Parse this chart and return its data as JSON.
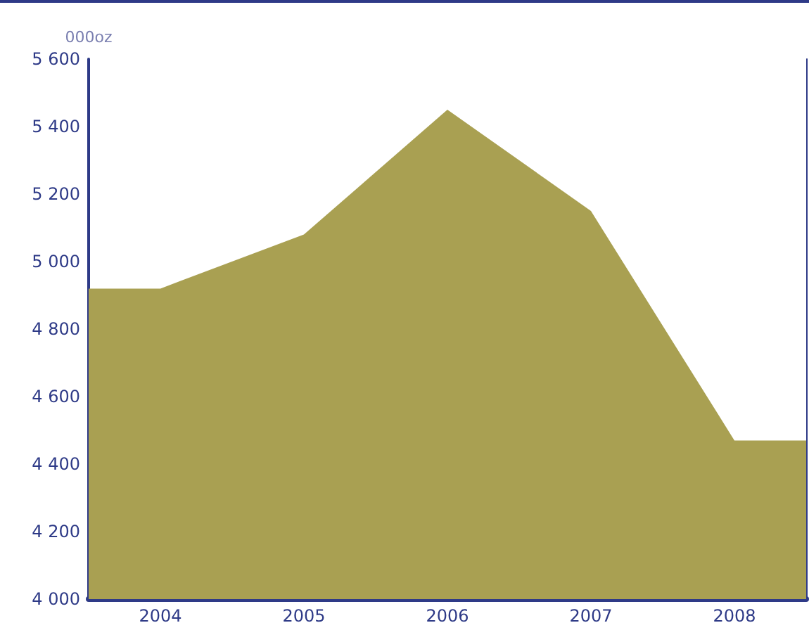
{
  "chart_data": {
    "type": "area",
    "ylabel": "000oz",
    "x": [
      2003.5,
      2004,
      2005,
      2006,
      2007,
      2008,
      2008.5
    ],
    "series": [
      {
        "color": "#a9a052",
        "values": [
          4920,
          4920,
          5080,
          5450,
          5150,
          4470,
          4470
        ]
      }
    ],
    "xlim": [
      2003.5,
      2008.5
    ],
    "xticks": [
      2004,
      2005,
      2006,
      2007,
      2008
    ],
    "ylim": [
      4000,
      5600
    ],
    "yticks": [
      {
        "value": 4000,
        "label": "4 000"
      },
      {
        "value": 4200,
        "label": "4 200"
      },
      {
        "value": 4400,
        "label": "4 400"
      },
      {
        "value": 4600,
        "label": "4 600"
      },
      {
        "value": 4800,
        "label": "4 800"
      },
      {
        "value": 5000,
        "label": "5 000"
      },
      {
        "value": 5200,
        "label": "5 200"
      },
      {
        "value": 5400,
        "label": "5 400"
      },
      {
        "value": 5600,
        "label": "5 600"
      }
    ],
    "grid": false,
    "marker": "none"
  }
}
